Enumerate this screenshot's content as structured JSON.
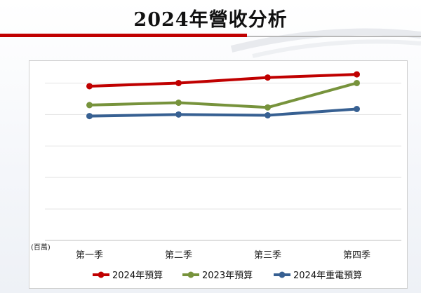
{
  "title": "2024年營收分析",
  "chart_data": {
    "type": "line",
    "title": "",
    "unit_label": "(百萬)",
    "categories": [
      "第一季",
      "第二季",
      "第三季",
      "第四季"
    ],
    "series": [
      {
        "name": "2024年預算",
        "color": "#c00000",
        "values": [
          116,
          120,
          127,
          131
        ]
      },
      {
        "name": "2023年預算",
        "color": "#77933c",
        "values": [
          92,
          95,
          89,
          120
        ]
      },
      {
        "name": "2024年重電預算",
        "color": "#376092",
        "values": [
          78,
          80,
          79,
          87
        ]
      }
    ],
    "ylim": [
      -80,
      140
    ],
    "grid": true,
    "legend": "bottom"
  }
}
